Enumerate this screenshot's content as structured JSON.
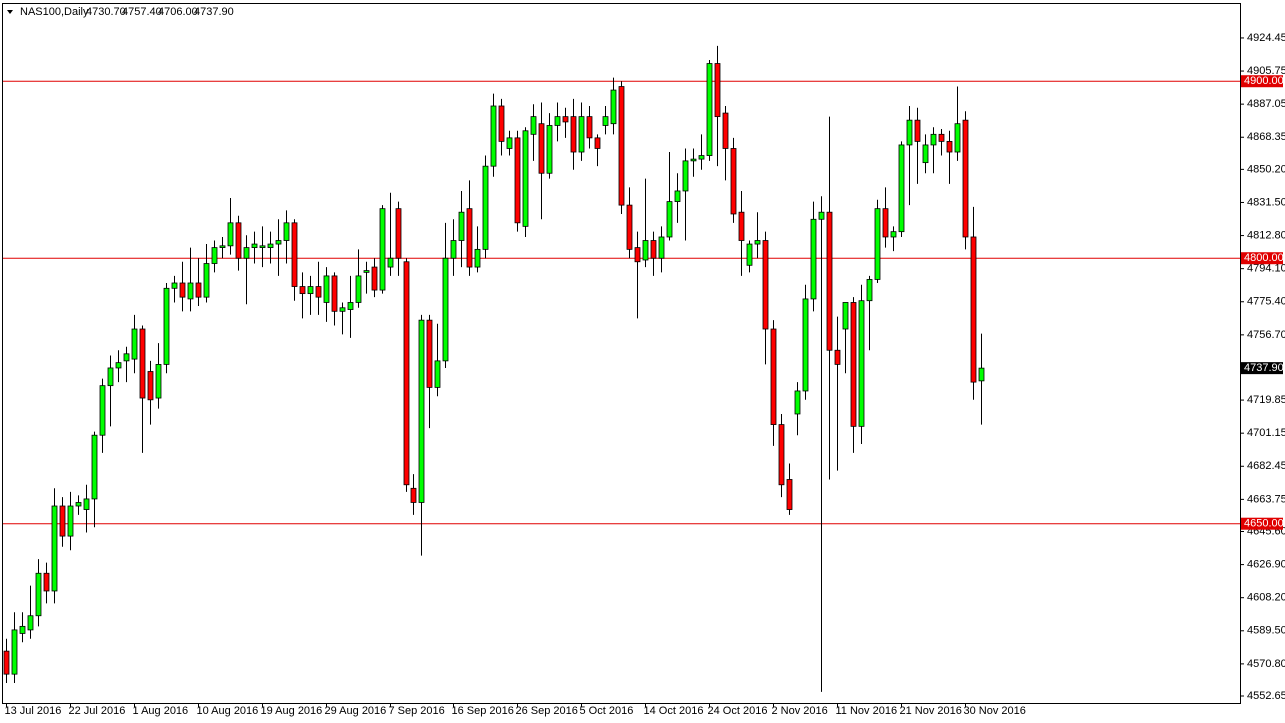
{
  "chart_data": {
    "type": "candlestick",
    "header": {
      "symbol": "NAS100,Daily",
      "ohlc": [
        "4730.70",
        "4757.40",
        "4706.00",
        "4737.90"
      ]
    },
    "colors": {
      "up": "#00ff00",
      "down": "#ff0000",
      "level": "#e00000"
    },
    "ylim": [
      4548.7,
      4942.5
    ],
    "yticks": [
      4924.45,
      4905.75,
      4887.05,
      4868.35,
      {
        "value": 4850.2,
        "label": "4850.20"
      },
      {
        "value": 4831.5,
        "label": "4831.50"
      },
      {
        "value": 4812.8,
        "label": "4812.80"
      },
      {
        "value": 4794.1,
        "label": "4794.10"
      },
      {
        "value": 4775.4,
        "label": "4775.40"
      },
      {
        "value": 4756.7,
        "label": "4756.70"
      },
      4719.85,
      4701.15,
      4682.45,
      4663.75,
      {
        "value": 4645.6,
        "label": "4645.60"
      },
      {
        "value": 4626.9,
        "label": "4626.90"
      },
      {
        "value": 4608.2,
        "label": "4608.20"
      },
      {
        "value": 4589.5,
        "label": "4589.50"
      },
      {
        "value": 4570.8,
        "label": "4570.80"
      },
      4552.65
    ],
    "levels": [
      {
        "value": 4900,
        "label": "4900.00"
      },
      {
        "value": 4800,
        "label": "4800.00"
      },
      {
        "value": 4650,
        "label": "4650.00"
      }
    ],
    "price_label": {
      "value": 4737.9,
      "label": "4737.90"
    },
    "categories": [
      "13 Jul 2016",
      null,
      null,
      null,
      null,
      null,
      null,
      null,
      "22 Jul 2016",
      null,
      null,
      null,
      null,
      null,
      null,
      null,
      "1 Aug 2016",
      null,
      null,
      null,
      null,
      null,
      null,
      null,
      "10 Aug 2016",
      null,
      null,
      null,
      null,
      null,
      null,
      null,
      "19 Aug 2016",
      null,
      null,
      null,
      null,
      null,
      null,
      null,
      "29 Aug 2016",
      null,
      null,
      null,
      null,
      null,
      null,
      null,
      "7 Sep 2016",
      null,
      null,
      null,
      null,
      null,
      null,
      null,
      "16 Sep 2016",
      null,
      null,
      null,
      null,
      null,
      null,
      null,
      "26 Sep 2016",
      null,
      null,
      null,
      null,
      null,
      null,
      null,
      "5 Oct 2016",
      null,
      null,
      null,
      null,
      null,
      null,
      null,
      "14 Oct 2016",
      null,
      null,
      null,
      null,
      null,
      null,
      null,
      "24 Oct 2016",
      null,
      null,
      null,
      null,
      null,
      null,
      null,
      "2 Nov 2016",
      null,
      null,
      null,
      null,
      null,
      null,
      null,
      "11 Nov 2016",
      null,
      null,
      null,
      null,
      null,
      null,
      null,
      "21 Nov 2016",
      null,
      null,
      null,
      null,
      null,
      null,
      null,
      "30 Nov 2016",
      null,
      null
    ],
    "candles": [
      [
        4578,
        4585,
        4560,
        4565
      ],
      [
        4565,
        4600,
        4560,
        4590
      ],
      [
        4588,
        4600,
        4583,
        4592
      ],
      [
        4590,
        4615,
        4585,
        4598
      ],
      [
        4598,
        4630,
        4592,
        4622
      ],
      [
        4622,
        4628,
        4605,
        4612
      ],
      [
        4612,
        4670,
        4605,
        4660
      ],
      [
        4660,
        4665,
        4637,
        4643
      ],
      [
        4643,
        4668,
        4635,
        4660
      ],
      [
        4660,
        4666,
        4655,
        4662
      ],
      [
        4658,
        4672,
        4645,
        4664
      ],
      [
        4664,
        4702,
        4648,
        4700
      ],
      [
        4700,
        4732,
        4690,
        4728
      ],
      [
        4728,
        4745,
        4705,
        4738
      ],
      [
        4738,
        4748,
        4730,
        4741
      ],
      [
        4742,
        4750,
        4730,
        4746
      ],
      [
        4743,
        4768,
        4735,
        4760
      ],
      [
        4760,
        4762,
        4690,
        4721
      ],
      [
        4736,
        4742,
        4706,
        4720
      ],
      [
        4721,
        4752,
        4715,
        4740
      ],
      [
        4740,
        4786,
        4735,
        4783
      ],
      [
        4783,
        4790,
        4775,
        4786
      ],
      [
        4786,
        4798,
        4770,
        4778
      ],
      [
        4777,
        4806,
        4770,
        4786
      ],
      [
        4786,
        4800,
        4773,
        4778
      ],
      [
        4778,
        4808,
        4775,
        4797
      ],
      [
        4797,
        4810,
        4792,
        4806
      ],
      [
        4806,
        4812,
        4800,
        4807
      ],
      [
        4807,
        4834,
        4802,
        4820
      ],
      [
        4820,
        4824,
        4793,
        4800
      ],
      [
        4800,
        4813,
        4774,
        4806
      ],
      [
        4806,
        4815,
        4797,
        4808
      ],
      [
        4806,
        4818,
        4795,
        4807
      ],
      [
        4806,
        4815,
        4797,
        4808
      ],
      [
        4808,
        4822,
        4790,
        4810
      ],
      [
        4810,
        4827,
        4797,
        4820
      ],
      [
        4820,
        4822,
        4776,
        4784
      ],
      [
        4784,
        4792,
        4766,
        4780
      ],
      [
        4780,
        4790,
        4768,
        4784
      ],
      [
        4784,
        4798,
        4768,
        4778
      ],
      [
        4775,
        4795,
        4764,
        4790
      ],
      [
        4790,
        4792,
        4762,
        4770
      ],
      [
        4770,
        4775,
        4757,
        4772
      ],
      [
        4771,
        4790,
        4755,
        4775
      ],
      [
        4775,
        4805,
        4772,
        4790
      ],
      [
        4792,
        4798,
        4780,
        4793
      ],
      [
        4795,
        4800,
        4778,
        4782
      ],
      [
        4782,
        4830,
        4780,
        4828
      ],
      [
        4795,
        4837,
        4790,
        4800
      ],
      [
        4828,
        4832,
        4790,
        4800
      ],
      [
        4798,
        4800,
        4668,
        4672
      ],
      [
        4670,
        4678,
        4655,
        4662
      ],
      [
        4662,
        4768,
        4632,
        4765
      ],
      [
        4765,
        4768,
        4704,
        4727
      ],
      [
        4727,
        4763,
        4722,
        4742
      ],
      [
        4742,
        4820,
        4738,
        4800
      ],
      [
        4800,
        4822,
        4790,
        4810
      ],
      [
        4810,
        4838,
        4795,
        4826
      ],
      [
        4828,
        4844,
        4790,
        4795
      ],
      [
        4795,
        4818,
        4792,
        4805
      ],
      [
        4805,
        4858,
        4800,
        4852
      ],
      [
        4852,
        4893,
        4846,
        4886
      ],
      [
        4886,
        4890,
        4858,
        4866
      ],
      [
        4862,
        4872,
        4858,
        4868
      ],
      [
        4868,
        4872,
        4815,
        4820
      ],
      [
        4818,
        4874,
        4812,
        4872
      ],
      [
        4870,
        4887,
        4855,
        4880
      ],
      [
        4876,
        4888,
        4822,
        4848
      ],
      [
        4848,
        4882,
        4845,
        4875
      ],
      [
        4875,
        4888,
        4866,
        4880
      ],
      [
        4880,
        4885,
        4868,
        4877
      ],
      [
        4880,
        4890,
        4850,
        4860
      ],
      [
        4860,
        4888,
        4855,
        4880
      ],
      [
        4880,
        4886,
        4862,
        4868
      ],
      [
        4868,
        4870,
        4852,
        4862
      ],
      [
        4875,
        4886,
        4870,
        4880
      ],
      [
        4876,
        4902,
        4870,
        4895
      ],
      [
        4897,
        4900,
        4825,
        4830
      ],
      [
        4830,
        4840,
        4800,
        4805
      ],
      [
        4806,
        4815,
        4766,
        4798
      ],
      [
        4799,
        4845,
        4795,
        4810
      ],
      [
        4810,
        4815,
        4790,
        4800
      ],
      [
        4800,
        4818,
        4792,
        4812
      ],
      [
        4812,
        4860,
        4810,
        4832
      ],
      [
        4832,
        4848,
        4820,
        4838
      ],
      [
        4838,
        4862,
        4810,
        4855
      ],
      [
        4855,
        4862,
        4846,
        4856
      ],
      [
        4856,
        4870,
        4850,
        4858
      ],
      [
        4858,
        4912,
        4855,
        4910
      ],
      [
        4910,
        4920,
        4852,
        4880
      ],
      [
        4882,
        4886,
        4844,
        4862
      ],
      [
        4862,
        4868,
        4820,
        4825
      ],
      [
        4826,
        4838,
        4790,
        4810
      ],
      [
        4796,
        4810,
        4792,
        4808
      ],
      [
        4808,
        4826,
        4800,
        4810
      ],
      [
        4810,
        4815,
        4740,
        4760
      ],
      [
        4760,
        4765,
        4694,
        4706
      ],
      [
        4706,
        4712,
        4665,
        4672
      ],
      [
        4675,
        4684,
        4655,
        4658
      ],
      [
        4712,
        4730,
        4700,
        4725
      ],
      [
        4725,
        4785,
        4720,
        4777
      ],
      [
        4777,
        4832,
        4770,
        4822
      ],
      [
        4822,
        4835,
        4555,
        4826
      ],
      [
        4826,
        4880,
        4675,
        4748
      ],
      [
        4748,
        4767,
        4680,
        4740
      ],
      [
        4760,
        4775,
        4735,
        4775
      ],
      [
        4775,
        4778,
        4690,
        4705
      ],
      [
        4705,
        4785,
        4695,
        4776
      ],
      [
        4776,
        4790,
        4748,
        4788
      ],
      [
        4788,
        4833,
        4786,
        4828
      ],
      [
        4828,
        4840,
        4806,
        4812
      ],
      [
        4812,
        4818,
        4804,
        4815
      ],
      [
        4815,
        4866,
        4812,
        4864
      ],
      [
        4864,
        4886,
        4830,
        4878
      ],
      [
        4878,
        4885,
        4842,
        4866
      ],
      [
        4854,
        4870,
        4848,
        4864
      ],
      [
        4864,
        4874,
        4848,
        4870
      ],
      [
        4870,
        4873,
        4858,
        4866
      ],
      [
        4866,
        4872,
        4842,
        4860
      ],
      [
        4860,
        4897,
        4855,
        4876
      ],
      [
        4878,
        4883,
        4805,
        4812
      ],
      [
        4812,
        4829,
        4720,
        4730
      ],
      [
        4730.7,
        4757.4,
        4706,
        4737.9
      ]
    ]
  }
}
